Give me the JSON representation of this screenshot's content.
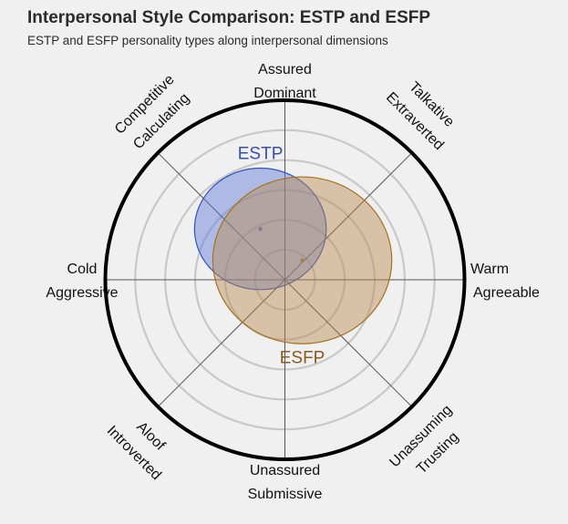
{
  "chart_data": {
    "type": "ellipse-circumplex",
    "title": "Interpersonal Style Comparison: ESTP and ESFP",
    "subtitle": "ESTP and ESFP personality types along interpersonal dimensions",
    "axis_labels": {
      "top": [
        "Assured",
        "Dominant"
      ],
      "top_right": [
        "Talkative",
        "Extraverted"
      ],
      "right": [
        "Warm",
        "Agreeable"
      ],
      "bottom_right": [
        "Unassuming",
        "Trusting"
      ],
      "bottom": [
        "Unassured",
        "Submissive"
      ],
      "bottom_left": [
        "Aloof",
        "Introverted"
      ],
      "left": [
        "Cold",
        "Aggressive"
      ],
      "top_left": [
        "Competitive",
        "Calculating"
      ]
    },
    "radial_range": [
      0,
      6
    ],
    "rings": [
      1,
      2,
      3,
      4,
      5
    ],
    "grid": true,
    "series": [
      {
        "name": "ESTP",
        "x": -0.82,
        "y": 1.7,
        "rx": 2.2,
        "ry": 2.03,
        "fill": "#5a78d8",
        "stroke": "#3352c0",
        "label_color": "#3450b4"
      },
      {
        "name": "ESFP",
        "x": 0.58,
        "y": 0.65,
        "rx": 2.99,
        "ry": 2.79,
        "fill": "#b88a4e",
        "stroke": "#a8701e",
        "label_color": "#8c5a1c"
      }
    ]
  }
}
